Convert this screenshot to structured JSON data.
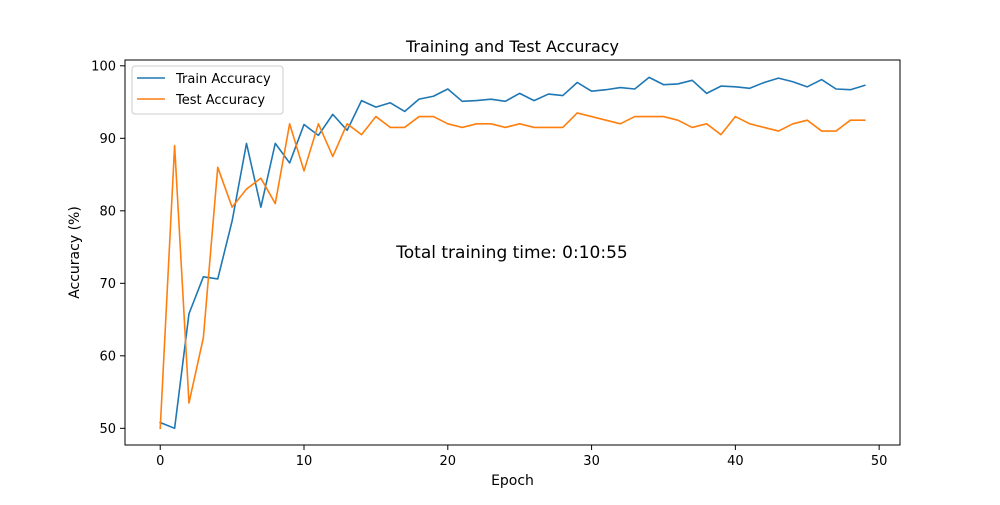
{
  "chart_data": {
    "type": "line",
    "title": "Training and Test Accuracy",
    "xlabel": "Epoch",
    "ylabel": "Accuracy (%)",
    "xlim": [
      -2.45,
      51.45
    ],
    "ylim": [
      47.7,
      100.8
    ],
    "x_ticks": [
      0,
      10,
      20,
      30,
      40,
      50
    ],
    "y_ticks": [
      50,
      60,
      70,
      80,
      90,
      100
    ],
    "grid": false,
    "legend_position": "top-left",
    "annotation": "Total training time: 0:10:55",
    "x": [
      0,
      1,
      2,
      3,
      4,
      5,
      6,
      7,
      8,
      9,
      10,
      11,
      12,
      13,
      14,
      15,
      16,
      17,
      18,
      19,
      20,
      21,
      22,
      23,
      24,
      25,
      26,
      27,
      28,
      29,
      30,
      31,
      32,
      33,
      34,
      35,
      36,
      37,
      38,
      39,
      40,
      41,
      42,
      43,
      44,
      45,
      46,
      47,
      48,
      49
    ],
    "series": [
      {
        "name": "Train Accuracy",
        "color": "#1f77b4",
        "values": [
          50.8,
          50.0,
          65.8,
          70.9,
          70.6,
          78.6,
          89.3,
          80.5,
          89.3,
          86.6,
          91.9,
          90.4,
          93.3,
          91.1,
          95.2,
          94.3,
          94.9,
          93.7,
          95.4,
          95.8,
          96.8,
          95.1,
          95.2,
          95.4,
          95.1,
          96.2,
          95.2,
          96.1,
          95.9,
          97.7,
          96.5,
          96.7,
          97.0,
          96.8,
          98.4,
          97.4,
          97.5,
          98.0,
          96.2,
          97.2,
          97.1,
          96.9,
          97.7,
          98.3,
          97.8,
          97.1,
          98.1,
          96.8,
          96.7,
          97.3
        ]
      },
      {
        "name": "Test Accuracy",
        "color": "#ff7f0e",
        "values": [
          50.0,
          89.0,
          53.5,
          62.5,
          86.0,
          80.5,
          83.0,
          84.5,
          81.0,
          92.0,
          85.5,
          92.0,
          87.5,
          92.0,
          90.5,
          93.0,
          91.5,
          91.5,
          93.0,
          93.0,
          92.0,
          91.5,
          92.0,
          92.0,
          91.5,
          92.0,
          91.5,
          91.5,
          91.5,
          93.5,
          93.0,
          92.5,
          92.0,
          93.0,
          93.0,
          93.0,
          92.5,
          91.5,
          92.0,
          90.5,
          93.0,
          92.0,
          91.5,
          91.0,
          92.0,
          92.5,
          91.0,
          91.0,
          92.5,
          92.5
        ]
      }
    ]
  }
}
